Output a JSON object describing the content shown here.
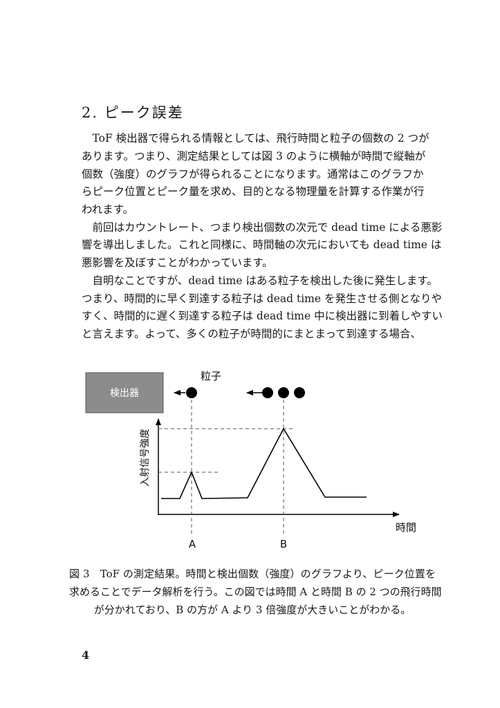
{
  "section_title": "2. ピーク誤差",
  "body_lines": [
    "　ToF 検出器で得られる情報としては、飛行時間と粒子の個数の 2 つが",
    "あります。つまり、測定結果としては図 3 のように横軸が時間で縦軸が",
    "個数（強度）のグラフが得られることになります。通常はこのグラフか",
    "らピーク位置とピーク量を求め、目的となる物理量を計算する作業が行",
    "われます。",
    "　前回はカウントレート、つまり検出個数の次元で dead time による悪影",
    "響を導出しました。これと同様に、時間軸の次元においても dead time は",
    "悪影響を及ぼすことがわかっています。",
    "　自明なことですが、dead time はある粒子を検出した後に発生します。",
    "つまり、時間的に早く到達する粒子は dead time を発生させる側となりや",
    "すく、時間的に遅く到達する粒子は dead time 中に検出器に到着しやすい",
    "と言えます。よって、多くの粒子が時間的にまとまって到達する場合、"
  ],
  "figure": {
    "detector_label": "検出器",
    "particle_label": "粒子",
    "y_axis_label": "入射信号強度",
    "x_axis_label": "時間",
    "marker_a": "A",
    "marker_b": "B",
    "detector_color": "#8c8c8c",
    "peak_ratio_b_to_a": 3
  },
  "caption_lines": [
    "図 3　ToF の測定結果。時間と検出個数（強度）のグラフより、ピーク位置を",
    "求めることでデータ解析を行う。この図では時間 A と時間 B の 2 つの飛行時間",
    "が分かれており、B の方が A より 3 倍強度が大きいことがわかる。"
  ],
  "page_number": "4"
}
